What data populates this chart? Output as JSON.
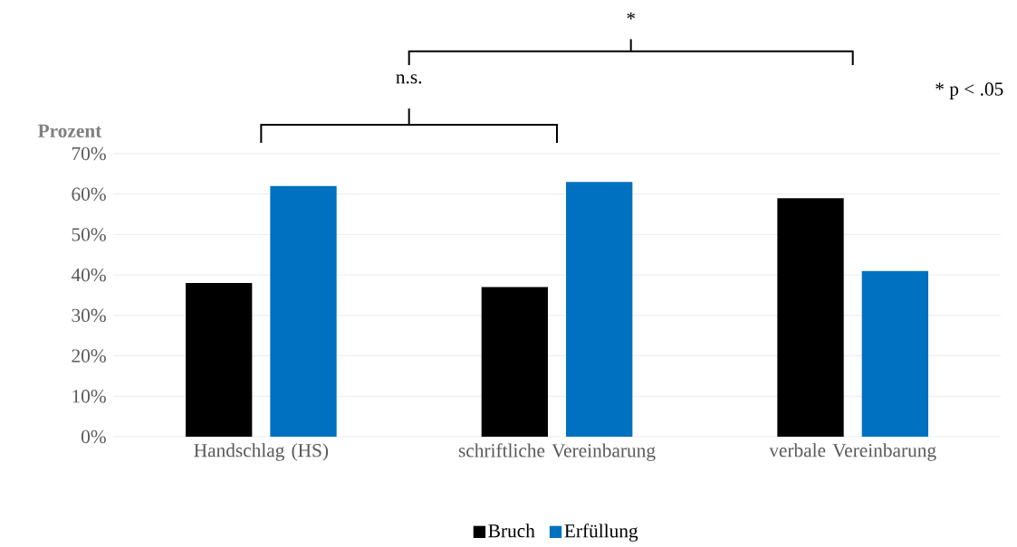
{
  "chart_data": {
    "type": "bar",
    "ylabel": "Prozent",
    "categories": [
      "Handschlag (HS)",
      "schriftliche Vereinbarung",
      "verbale Vereinbarung"
    ],
    "series": [
      {
        "name": "Bruch",
        "color": "#000000",
        "values": [
          38,
          37,
          59
        ]
      },
      {
        "name": "Erfüllung",
        "color": "#0070c0",
        "values": [
          62,
          63,
          41
        ]
      }
    ],
    "ylim": [
      0,
      70
    ],
    "yticks": [
      {
        "value": 0,
        "label": "0%"
      },
      {
        "value": 10,
        "label": "10%"
      },
      {
        "value": 20,
        "label": "20%"
      },
      {
        "value": 30,
        "label": "30%"
      },
      {
        "value": 40,
        "label": "40%"
      },
      {
        "value": 50,
        "label": "50%"
      },
      {
        "value": 60,
        "label": "60%"
      },
      {
        "value": 70,
        "label": "70%"
      }
    ],
    "grid": "y",
    "legend": "bottom",
    "annotations": [
      "n.s.",
      "*",
      "* p < .05"
    ]
  }
}
